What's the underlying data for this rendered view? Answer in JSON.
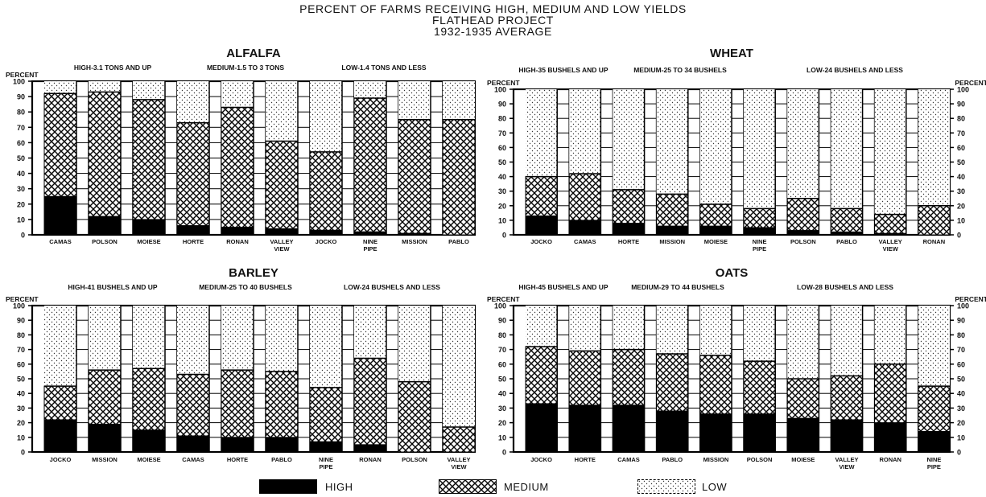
{
  "title_lines": [
    "PERCENT OF FARMS RECEIVING HIGH, MEDIUM AND LOW YIELDS",
    "FLATHEAD PROJECT",
    "1932-1935 AVERAGE"
  ],
  "legend": [
    {
      "key": "high",
      "label": "HIGH"
    },
    {
      "key": "medium",
      "label": "MEDIUM"
    },
    {
      "key": "low",
      "label": "LOW"
    }
  ],
  "axis_unit": "PERCENT",
  "chart_data": [
    {
      "type": "bar",
      "stacked": true,
      "title": "ALFALFA",
      "subtitles": [
        "HIGH-3.1 TONS AND UP",
        "MEDIUM-1.5 TO 3 TONS",
        "LOW-1.4 TONS AND LESS"
      ],
      "ylabel": "PERCENT",
      "ylim": [
        0,
        100
      ],
      "yticks": [
        0,
        10,
        20,
        30,
        40,
        50,
        60,
        70,
        80,
        90,
        100
      ],
      "right_axis": false,
      "categories": [
        "CAMAS",
        "POLSON",
        "MOIESE",
        "HORTE",
        "RONAN",
        "VALLEY\nVIEW",
        "JOCKO",
        "NINE\nPIPE",
        "MISSION",
        "PABLO"
      ],
      "series": [
        {
          "name": "HIGH",
          "values": [
            25,
            12,
            10,
            6,
            5,
            4,
            3,
            2,
            1,
            0
          ]
        },
        {
          "name": "MEDIUM",
          "values": [
            67,
            81,
            78,
            67,
            78,
            57,
            51,
            87,
            74,
            75
          ]
        },
        {
          "name": "LOW",
          "values": [
            8,
            7,
            12,
            27,
            17,
            39,
            46,
            11,
            25,
            25
          ]
        }
      ]
    },
    {
      "type": "bar",
      "stacked": true,
      "title": "WHEAT",
      "subtitles": [
        "HIGH-35 BUSHELS AND UP",
        "MEDIUM-25 TO 34 BUSHELS",
        "LOW-24 BUSHELS AND LESS"
      ],
      "ylabel": "PERCENT",
      "ylim": [
        0,
        100
      ],
      "yticks": [
        0,
        10,
        20,
        30,
        40,
        50,
        60,
        70,
        80,
        90,
        100
      ],
      "right_axis": true,
      "categories": [
        "JOCKO",
        "CAMAS",
        "HORTE",
        "MISSION",
        "MOIESE",
        "NINE\nPIPE",
        "POLSON",
        "PABLO",
        "VALLEY\nVIEW",
        "RONAN"
      ],
      "series": [
        {
          "name": "HIGH",
          "values": [
            13,
            10,
            8,
            6,
            6,
            5,
            3,
            2,
            1,
            0
          ]
        },
        {
          "name": "MEDIUM",
          "values": [
            27,
            32,
            23,
            22,
            15,
            13,
            22,
            16,
            13,
            20
          ]
        },
        {
          "name": "LOW",
          "values": [
            60,
            58,
            69,
            72,
            79,
            82,
            75,
            82,
            86,
            80
          ]
        }
      ]
    },
    {
      "type": "bar",
      "stacked": true,
      "title": "BARLEY",
      "subtitles": [
        "HIGH-41 BUSHELS AND UP",
        "MEDIUM-25 TO 40 BUSHELS",
        "LOW-24 BUSHELS AND LESS"
      ],
      "ylabel": "PERCENT",
      "ylim": [
        0,
        100
      ],
      "yticks": [
        0,
        10,
        20,
        30,
        40,
        50,
        60,
        70,
        80,
        90,
        100
      ],
      "right_axis": false,
      "categories": [
        "JOCKO",
        "MISSION",
        "MOIESE",
        "CAMAS",
        "HORTE",
        "PABLO",
        "NINE\nPIPE",
        "RONAN",
        "POLSON",
        "VALLEY\nVIEW"
      ],
      "series": [
        {
          "name": "HIGH",
          "values": [
            22,
            19,
            15,
            11,
            10,
            10,
            7,
            5,
            0,
            0
          ]
        },
        {
          "name": "MEDIUM",
          "values": [
            23,
            37,
            42,
            42,
            46,
            45,
            37,
            59,
            48,
            17
          ]
        },
        {
          "name": "LOW",
          "values": [
            55,
            44,
            43,
            47,
            44,
            45,
            56,
            36,
            52,
            83
          ]
        }
      ]
    },
    {
      "type": "bar",
      "stacked": true,
      "title": "OATS",
      "subtitles": [
        "HIGH-45 BUSHELS AND UP",
        "MEDIUM-29 TO 44 BUSHELS",
        "LOW-28 BUSHELS AND LESS"
      ],
      "ylabel": "PERCENT",
      "ylim": [
        0,
        100
      ],
      "yticks": [
        0,
        10,
        20,
        30,
        40,
        50,
        60,
        70,
        80,
        90,
        100
      ],
      "right_axis": true,
      "categories": [
        "JOCKO",
        "HORTE",
        "CAMAS",
        "PABLO",
        "MISSION",
        "POLSON",
        "MOIESE",
        "VALLEY\nVIEW",
        "RONAN",
        "NINE\nPIPE"
      ],
      "series": [
        {
          "name": "HIGH",
          "values": [
            33,
            32,
            32,
            28,
            26,
            26,
            23,
            22,
            20,
            14
          ]
        },
        {
          "name": "MEDIUM",
          "values": [
            39,
            37,
            38,
            39,
            40,
            36,
            27,
            30,
            40,
            31
          ]
        },
        {
          "name": "LOW",
          "values": [
            28,
            31,
            30,
            33,
            34,
            38,
            50,
            48,
            40,
            55
          ]
        }
      ]
    }
  ]
}
